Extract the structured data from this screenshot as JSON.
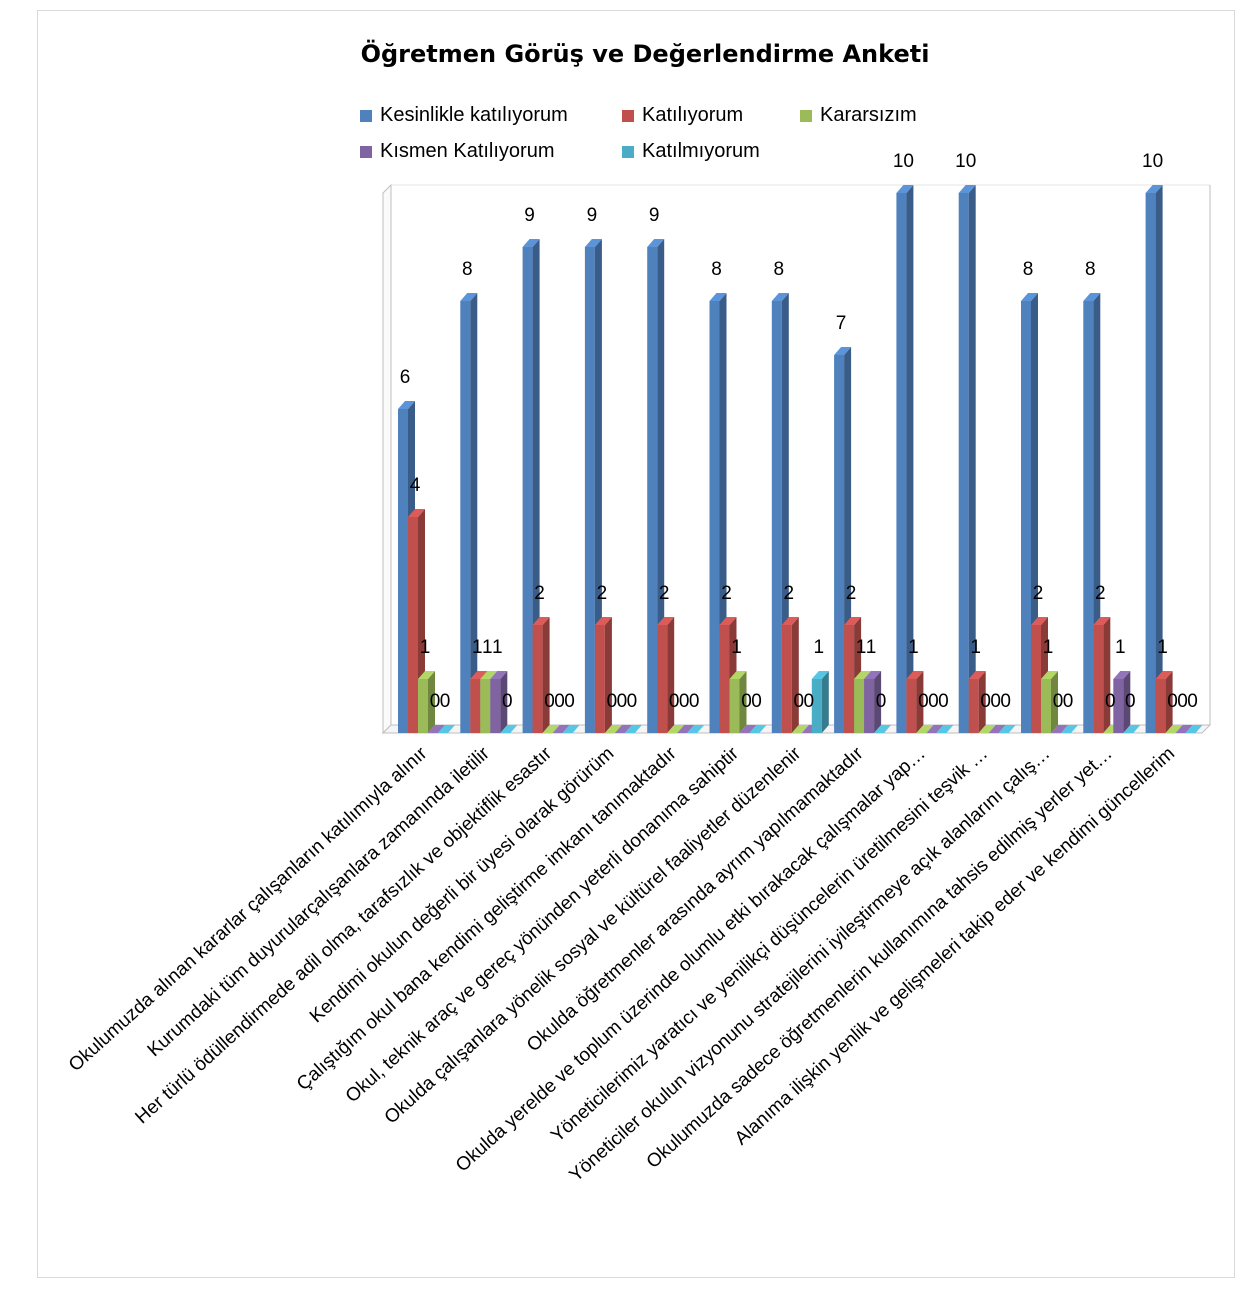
{
  "chart_data": {
    "type": "bar",
    "title": "Öğretmen Görüş ve Değerlendirme Anketi",
    "xlabel": "",
    "ylabel": "",
    "ylim": [
      0,
      10
    ],
    "grid": false,
    "legend_position": "top",
    "categories": [
      "Okulumuzda alınan kararlar çalışanların katılımıyla alınır",
      "Kurumdaki tüm duyurularçalışanlara zamanında iletilir",
      "Her türlü ödüllendirmede adil olma, tarafsızlık ve objektiflik esastır",
      "Kendimi okulun değerli bir üyesi olarak görürüm",
      "Çalıştığım okul bana kendimi geliştirme imkanı tanımaktadır",
      "Okul, teknik araç ve gereç yönünden yeterli donanıma sahiptir",
      "Okulda çalışanlara yönelik sosyal ve kültürel faaliyetler düzenlenir",
      "Okulda öğretmenler arasında ayrım yapılmamaktadır",
      "Okulda yerelde ve toplum üzerinde olumlu etki bırakacak çalışmalar yap…",
      "Yöneticilerimiz yaratıcı ve yenilikçi düşüncelerin üretilmesini teşvik …",
      "Yöneticiler okulun vizyonunu stratejilerini iyileştirmeye açık alanlarını çalış…",
      "Okulumuzda sadece öğretmenlerin kullanımına tahsis edilmiş yerler yet…",
      "Alanıma ilişkin yenlik ve gelişmeleri takip eder ve kendimi güncellerim"
    ],
    "series": [
      {
        "name": "Kesinlikle katılıyorum",
        "color": "#4f81bd",
        "values": [
          6,
          8,
          9,
          9,
          9,
          8,
          8,
          7,
          10,
          10,
          8,
          8,
          10
        ]
      },
      {
        "name": "Katılıyorum",
        "color": "#c0504d",
        "values": [
          4,
          1,
          2,
          2,
          2,
          2,
          2,
          2,
          1,
          1,
          2,
          2,
          1
        ]
      },
      {
        "name": "Kararsızım",
        "color": "#9bbb59",
        "values": [
          1,
          1,
          0,
          0,
          0,
          1,
          0,
          1,
          0,
          0,
          1,
          0,
          0
        ]
      },
      {
        "name": "Kısmen Katılıyorum",
        "color": "#8064a2",
        "values": [
          0,
          1,
          0,
          0,
          0,
          0,
          0,
          1,
          0,
          0,
          0,
          1,
          0
        ]
      },
      {
        "name": "Katılmıyorum",
        "color": "#4bacc6",
        "values": [
          0,
          0,
          0,
          0,
          0,
          0,
          1,
          0,
          0,
          0,
          0,
          0,
          0
        ]
      }
    ]
  }
}
